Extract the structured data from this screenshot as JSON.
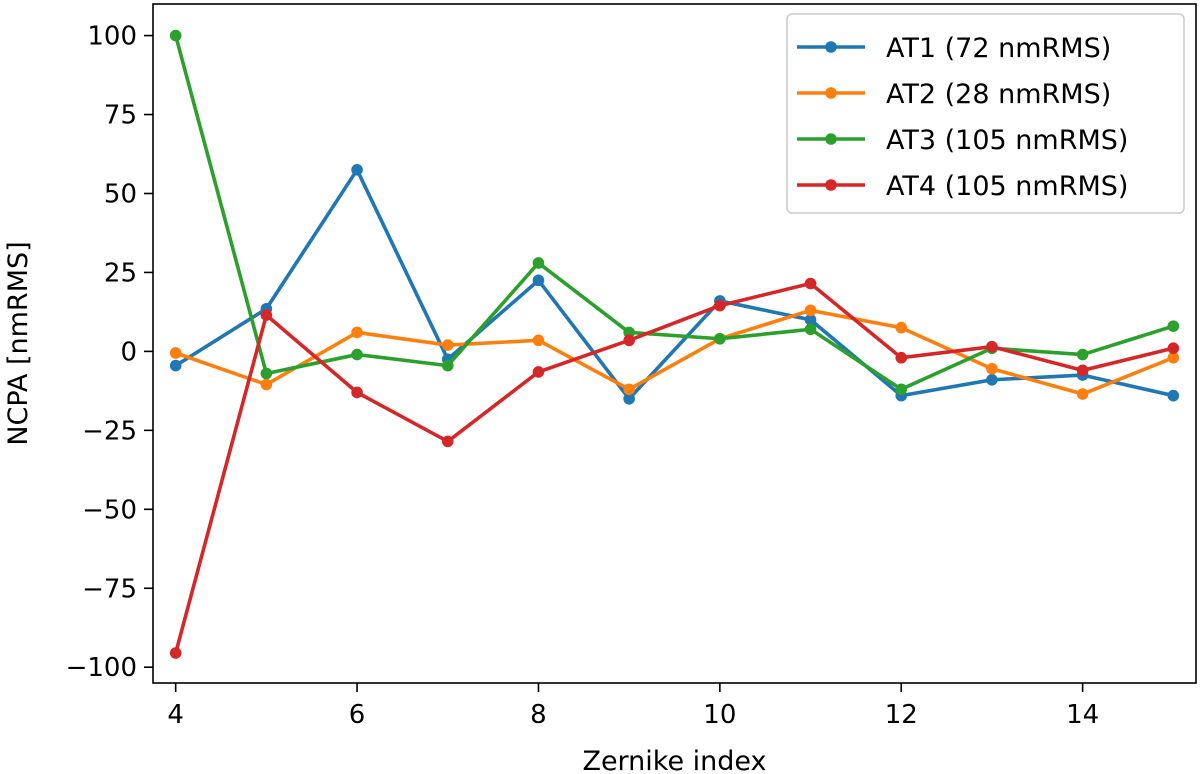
{
  "chart_data": {
    "type": "line",
    "title": "",
    "xlabel": "Zernike index",
    "ylabel": "NCPA [nmRMS]",
    "xlim": [
      3.75,
      15.25
    ],
    "ylim": [
      -105,
      110
    ],
    "xticks": [
      4,
      6,
      8,
      10,
      12,
      14
    ],
    "xtick_labels": [
      "4",
      "6",
      "8",
      "10",
      "12",
      "14"
    ],
    "yticks": [
      100,
      75,
      50,
      25,
      0,
      -25,
      -50,
      -75,
      -100
    ],
    "ytick_labels": [
      "100",
      "75",
      "50",
      "25",
      "0",
      "−25",
      "−50",
      "−75",
      "−100"
    ],
    "grid": false,
    "legend_position": "top-right",
    "x": [
      4,
      5,
      6,
      7,
      8,
      9,
      10,
      11,
      12,
      13,
      14,
      15
    ],
    "series": [
      {
        "name": "AT1 (72 nmRMS)",
        "color": "#1f77b4",
        "values": [
          -4.5,
          13.5,
          57.5,
          -2.5,
          22.5,
          -15,
          16,
          10,
          -14,
          -9,
          -7.5,
          -14
        ]
      },
      {
        "name": "AT2 (28 nmRMS)",
        "color": "#ff7f0e",
        "values": [
          -0.5,
          -10.5,
          6,
          2,
          3.5,
          -12,
          4,
          13,
          7.5,
          -5.5,
          -13.5,
          -2
        ]
      },
      {
        "name": "AT3 (105 nmRMS)",
        "color": "#2ca02c",
        "values": [
          100,
          -7,
          -1,
          -4.5,
          28,
          6,
          4,
          7,
          -12,
          1,
          -1,
          8
        ]
      },
      {
        "name": "AT4 (105 nmRMS)",
        "color": "#d62728",
        "values": [
          -95.5,
          11.5,
          -13,
          -28.5,
          -6.5,
          3.5,
          14.5,
          21.5,
          -2,
          1.5,
          -6,
          1
        ]
      }
    ]
  }
}
